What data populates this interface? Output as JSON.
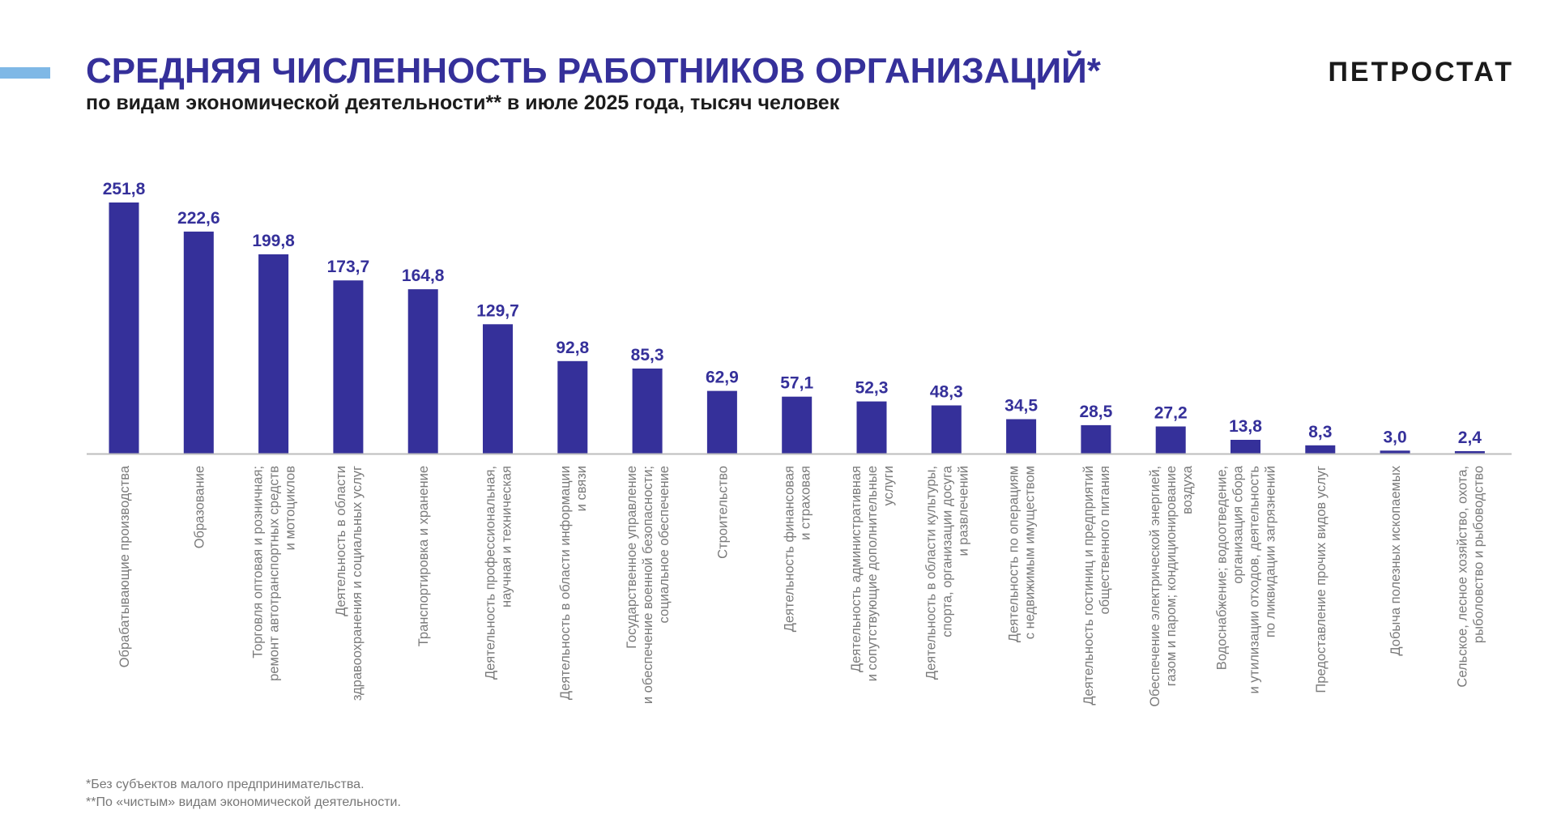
{
  "header": {
    "title": "СРЕДНЯЯ ЧИСЛЕННОСТЬ РАБОТНИКОВ ОРГАНИЗАЦИЙ*",
    "subtitle": "по видам экономической деятельности** в июле 2025 года, тысяч человек",
    "brand": "ПЕТРОСТАТ"
  },
  "footnotes": [
    "*Без субъектов малого предпринимательства.",
    "**По «чистым» видам экономической деятельности."
  ],
  "colors": {
    "bar": "#35309a",
    "value_label": "#35309a",
    "category_label": "#7a7a7a",
    "axis": "#bdbdbd",
    "accent": "#7fb8e6"
  },
  "chart_data": {
    "type": "bar",
    "title": "СРЕДНЯЯ ЧИСЛЕННОСТЬ РАБОТНИКОВ ОРГАНИЗАЦИЙ*",
    "subtitle": "по видам экономической деятельности** в июле 2025 года, тысяч человек",
    "ylim": [
      0,
      260
    ],
    "grid": false,
    "legend": "none",
    "categories": [
      [
        "Обрабатывающие производства"
      ],
      [
        "Образование"
      ],
      [
        "Торговля оптовая и розничная;",
        "ремонт автотранспортных средств",
        "и мотоциклов"
      ],
      [
        "Деятельность в области",
        "здравоохранения и социальных услуг"
      ],
      [
        "Транспортировка и хранение"
      ],
      [
        "Деятельность профессиональная,",
        "научная и техническая"
      ],
      [
        "Деятельность в области информации",
        "и связи"
      ],
      [
        "Государственное управление",
        "и обеспечение военной безопасности;",
        "социальное обеспечение"
      ],
      [
        "Строительство"
      ],
      [
        "Деятельность финансовая",
        "и страховая"
      ],
      [
        "Деятельность административная",
        "и сопутствующие дополнительные",
        "услуги"
      ],
      [
        "Деятельность в области культуры,",
        "спорта, организации досуга",
        "и развлечений"
      ],
      [
        "Деятельность по операциям",
        "с недвижимым имуществом"
      ],
      [
        "Деятельность гостиниц и предприятий",
        "общественного питания"
      ],
      [
        "Обеспечение электрической энергией,",
        "газом и паром; кондиционирование",
        "воздуха"
      ],
      [
        "Водоснабжение; водоотведение,",
        "организация сбора",
        "и утилизации отходов, деятельность",
        "по ликвидации загрязнений"
      ],
      [
        "Предоставление прочих видов услуг"
      ],
      [
        "Добыча полезных ископаемых"
      ],
      [
        "Сельское, лесное хозяйство, охота,",
        "рыболовство и рыбоводство"
      ]
    ],
    "values": [
      251.8,
      222.6,
      199.8,
      173.7,
      164.8,
      129.7,
      92.8,
      85.3,
      62.9,
      57.1,
      52.3,
      48.3,
      34.5,
      28.5,
      27.2,
      13.8,
      8.3,
      3.0,
      2.4
    ],
    "value_labels": [
      "251,8",
      "222,6",
      "199,8",
      "173,7",
      "164,8",
      "129,7",
      "92,8",
      "85,3",
      "62,9",
      "57,1",
      "52,3",
      "48,3",
      "34,5",
      "28,5",
      "27,2",
      "13,8",
      "8,3",
      "3,0",
      "2,4"
    ]
  }
}
